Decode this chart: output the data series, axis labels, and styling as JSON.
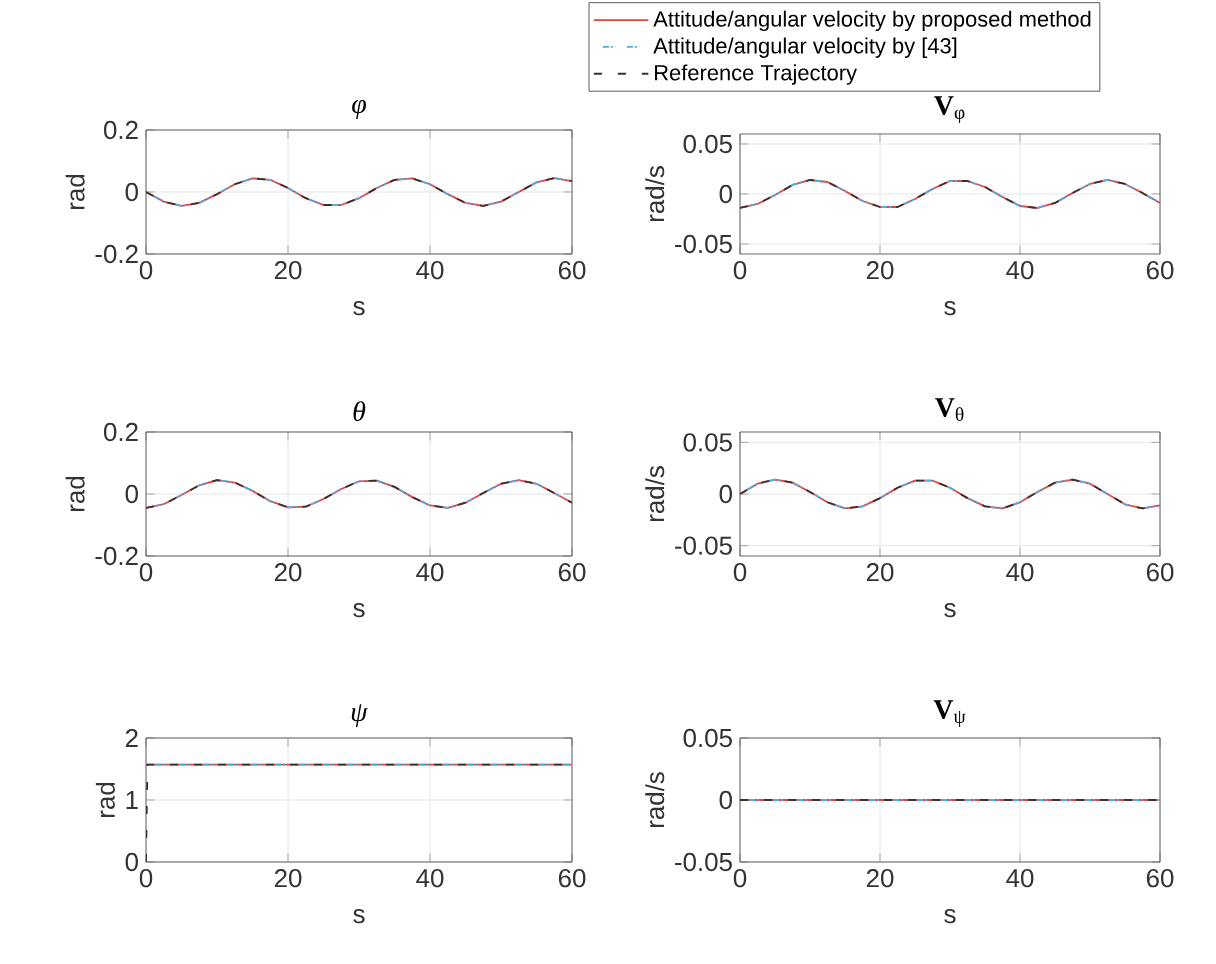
{
  "chart_data": [
    {
      "type": "line",
      "title": "*φ*",
      "xlabel": "s",
      "ylabel": "rad",
      "xlim": [
        0,
        60
      ],
      "xticks": [
        0,
        20,
        40,
        60
      ],
      "ylim": [
        -0.2,
        0.2
      ],
      "yticks": [
        -0.2,
        0,
        0.2
      ],
      "grid": true,
      "legend": "top right",
      "x": [
        0,
        2.5,
        5,
        7.5,
        10,
        12.5,
        15,
        17.5,
        20,
        22.5,
        25,
        27.5,
        30,
        32.5,
        35,
        37.5,
        40,
        42.5,
        45,
        47.5,
        50,
        52.5,
        55,
        57.5,
        60
      ],
      "series": [
        {
          "name": "Attitude/angular velocity by proposed method",
          "color": "#e8413c",
          "line_style": "solid",
          "values": [
            0,
            -0.031,
            -0.045,
            -0.035,
            -0.007,
            0.025,
            0.044,
            0.039,
            0.013,
            -0.02,
            -0.042,
            -0.042,
            -0.02,
            0.013,
            0.039,
            0.044,
            0.025,
            -0.007,
            -0.035,
            -0.045,
            -0.031,
            0,
            0.031,
            0.045,
            0.035
          ]
        },
        {
          "name": "Attitude/angular velocity by [43]",
          "color": "#4daee8",
          "line_style": "dashdot",
          "values": [
            0,
            -0.031,
            -0.045,
            -0.035,
            -0.007,
            0.025,
            0.044,
            0.039,
            0.013,
            -0.02,
            -0.042,
            -0.042,
            -0.02,
            0.013,
            0.039,
            0.044,
            0.025,
            -0.007,
            -0.035,
            -0.045,
            -0.031,
            0,
            0.031,
            0.045,
            0.035
          ]
        },
        {
          "name": "Reference Trajectory",
          "color": "#333333",
          "line_style": "dashed",
          "values": [
            0,
            -0.031,
            -0.045,
            -0.035,
            -0.007,
            0.025,
            0.044,
            0.039,
            0.013,
            -0.02,
            -0.042,
            -0.042,
            -0.02,
            0.013,
            0.039,
            0.044,
            0.025,
            -0.007,
            -0.035,
            -0.045,
            -0.031,
            0,
            0.031,
            0.045,
            0.035
          ]
        }
      ]
    },
    {
      "type": "line",
      "title": "**V**$_{φ}$",
      "xlabel": "s",
      "ylabel": "rad/s",
      "xlim": [
        0,
        60
      ],
      "xticks": [
        0,
        20,
        40,
        60
      ],
      "ylim": [
        -0.06,
        0.06
      ],
      "yticks": [
        -0.05,
        0,
        0.05
      ],
      "grid": true,
      "x": [
        0,
        2.5,
        5,
        7.5,
        10,
        12.5,
        15,
        17.5,
        20,
        22.5,
        25,
        27.5,
        30,
        32.5,
        35,
        37.5,
        40,
        42.5,
        45,
        47.5,
        50,
        52.5,
        55,
        57.5,
        60
      ],
      "series": [
        {
          "color": "#e8413c",
          "line_style": "solid",
          "values": [
            -0.014,
            -0.01,
            -0.001,
            0.009,
            0.014,
            0.012,
            0.003,
            -0.007,
            -0.013,
            -0.013,
            -0.005,
            0.005,
            0.013,
            0.013,
            0.007,
            -0.003,
            -0.012,
            -0.014,
            -0.009,
            0.001,
            0.01,
            0.014,
            0.01,
            0.001,
            -0.009
          ]
        },
        {
          "color": "#4daee8",
          "line_style": "dashdot",
          "values": [
            -0.014,
            -0.01,
            -0.001,
            0.009,
            0.014,
            0.012,
            0.003,
            -0.007,
            -0.013,
            -0.013,
            -0.005,
            0.005,
            0.013,
            0.013,
            0.007,
            -0.003,
            -0.012,
            -0.014,
            -0.009,
            0.001,
            0.01,
            0.014,
            0.01,
            0.001,
            -0.009
          ]
        },
        {
          "color": "#333333",
          "line_style": "dashed",
          "values": [
            -0.014,
            -0.01,
            -0.001,
            0.009,
            0.014,
            0.012,
            0.003,
            -0.007,
            -0.013,
            -0.013,
            -0.005,
            0.005,
            0.013,
            0.013,
            0.007,
            -0.003,
            -0.012,
            -0.014,
            -0.009,
            0.001,
            0.01,
            0.014,
            0.01,
            0.001,
            -0.009
          ]
        }
      ]
    },
    {
      "type": "line",
      "title": "*θ*",
      "xlabel": "s",
      "ylabel": "rad",
      "xlim": [
        0,
        60
      ],
      "xticks": [
        0,
        20,
        40,
        60
      ],
      "ylim": [
        -0.2,
        0.2
      ],
      "yticks": [
        -0.2,
        0,
        0.2
      ],
      "grid": true,
      "x": [
        0,
        2.5,
        5,
        7.5,
        10,
        12.5,
        15,
        17.5,
        20,
        22.5,
        25,
        27.5,
        30,
        32.5,
        35,
        37.5,
        40,
        42.5,
        45,
        47.5,
        50,
        52.5,
        55,
        57.5,
        60
      ],
      "series": [
        {
          "color": "#e8413c",
          "line_style": "solid",
          "values": [
            -0.045,
            -0.033,
            -0.003,
            0.028,
            0.045,
            0.037,
            0.01,
            -0.023,
            -0.043,
            -0.041,
            -0.016,
            0.016,
            0.041,
            0.043,
            0.023,
            -0.01,
            -0.037,
            -0.045,
            -0.028,
            0.003,
            0.033,
            0.045,
            0.033,
            0.003,
            -0.028
          ]
        },
        {
          "color": "#4daee8",
          "line_style": "dashdot",
          "values": [
            -0.045,
            -0.033,
            -0.003,
            0.028,
            0.045,
            0.037,
            0.01,
            -0.023,
            -0.043,
            -0.041,
            -0.016,
            0.016,
            0.041,
            0.043,
            0.023,
            -0.01,
            -0.037,
            -0.045,
            -0.028,
            0.003,
            0.033,
            0.045,
            0.033,
            0.003,
            -0.028
          ]
        },
        {
          "color": "#333333",
          "line_style": "dashed",
          "values": [
            -0.045,
            -0.033,
            -0.003,
            0.028,
            0.045,
            0.037,
            0.01,
            -0.023,
            -0.043,
            -0.041,
            -0.016,
            0.016,
            0.041,
            0.043,
            0.023,
            -0.01,
            -0.037,
            -0.045,
            -0.028,
            0.003,
            0.033,
            0.045,
            0.033,
            0.003,
            -0.028
          ]
        }
      ]
    },
    {
      "type": "line",
      "title": "**V**$_{θ}$",
      "xlabel": "s",
      "ylabel": "rad/s",
      "xlim": [
        0,
        60
      ],
      "xticks": [
        0,
        20,
        40,
        60
      ],
      "ylim": [
        -0.06,
        0.06
      ],
      "yticks": [
        -0.05,
        0,
        0.05
      ],
      "grid": true,
      "x": [
        0,
        2.5,
        5,
        7.5,
        10,
        12.5,
        15,
        17.5,
        20,
        22.5,
        25,
        27.5,
        30,
        32.5,
        35,
        37.5,
        40,
        42.5,
        45,
        47.5,
        50,
        52.5,
        55,
        57.5,
        60
      ],
      "series": [
        {
          "color": "#e8413c",
          "line_style": "solid",
          "values": [
            0,
            0.01,
            0.014,
            0.011,
            0.002,
            -0.008,
            -0.014,
            -0.012,
            -0.004,
            0.006,
            0.013,
            0.013,
            0.006,
            -0.004,
            -0.012,
            -0.014,
            -0.008,
            0.002,
            0.011,
            0.014,
            0.01,
            0,
            -0.01,
            -0.014,
            -0.011
          ]
        },
        {
          "color": "#4daee8",
          "line_style": "dashdot",
          "values": [
            0,
            0.01,
            0.014,
            0.011,
            0.002,
            -0.008,
            -0.014,
            -0.012,
            -0.004,
            0.006,
            0.013,
            0.013,
            0.006,
            -0.004,
            -0.012,
            -0.014,
            -0.008,
            0.002,
            0.011,
            0.014,
            0.01,
            0,
            -0.01,
            -0.014,
            -0.011
          ]
        },
        {
          "color": "#333333",
          "line_style": "dashed",
          "values": [
            0,
            0.01,
            0.014,
            0.011,
            0.002,
            -0.008,
            -0.014,
            -0.012,
            -0.004,
            0.006,
            0.013,
            0.013,
            0.006,
            -0.004,
            -0.012,
            -0.014,
            -0.008,
            0.002,
            0.011,
            0.014,
            0.01,
            0,
            -0.01,
            -0.014,
            -0.011
          ]
        }
      ]
    },
    {
      "type": "line",
      "title": "*ψ*",
      "xlabel": "s",
      "ylabel": "rad",
      "xlim": [
        0,
        60
      ],
      "xticks": [
        0,
        20,
        40,
        60
      ],
      "ylim": [
        0,
        2
      ],
      "yticks": [
        0,
        1,
        2
      ],
      "grid": true,
      "series": [
        {
          "color": "#e8413c",
          "line_style": "solid",
          "x": [
            0,
            60
          ],
          "values": [
            1.57,
            1.57
          ]
        },
        {
          "color": "#4daee8",
          "line_style": "dashdot",
          "x": [
            0,
            60
          ],
          "values": [
            1.57,
            1.57
          ]
        },
        {
          "color": "#333333",
          "line_style": "dashed",
          "x": [
            0,
            0.2,
            60
          ],
          "values": [
            0,
            1.57,
            1.57
          ]
        }
      ]
    },
    {
      "type": "line",
      "title": "**V**$_{ψ}$",
      "xlabel": "s",
      "ylabel": "rad/s",
      "xlim": [
        0,
        60
      ],
      "xticks": [
        0,
        20,
        40,
        60
      ],
      "ylim": [
        -0.05,
        0.05
      ],
      "yticks": [
        -0.05,
        0,
        0.05
      ],
      "grid": true,
      "series": [
        {
          "color": "#e8413c",
          "line_style": "solid",
          "x": [
            0,
            60
          ],
          "values": [
            0,
            0
          ]
        },
        {
          "color": "#4daee8",
          "line_style": "dashdot",
          "x": [
            0,
            60
          ],
          "values": [
            0,
            0
          ]
        },
        {
          "color": "#333333",
          "line_style": "dashed",
          "x": [
            0,
            60
          ],
          "values": [
            0,
            0
          ]
        }
      ]
    }
  ]
}
